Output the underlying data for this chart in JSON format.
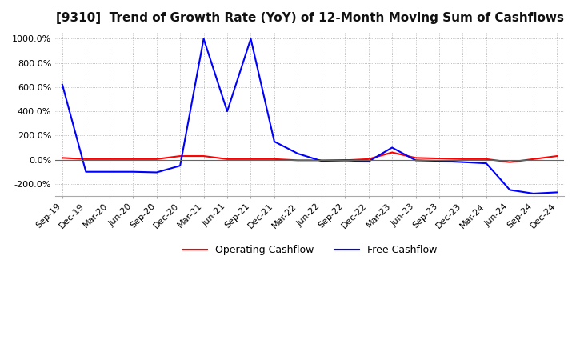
{
  "title": "[9310]  Trend of Growth Rate (YoY) of 12-Month Moving Sum of Cashflows",
  "ylim": [
    -300,
    1050
  ],
  "yticks": [
    -200,
    0,
    200,
    400,
    600,
    800,
    1000
  ],
  "ytick_labels": [
    "-200.0%",
    "0.0%",
    "200.0%",
    "400.0%",
    "600.0%",
    "800.0%",
    "1000.0%"
  ],
  "legend_entries": [
    "Operating Cashflow",
    "Free Cashflow"
  ],
  "background_color": "#ffffff",
  "grid_color": "#aaaaaa",
  "x_labels": [
    "Sep-19",
    "Dec-19",
    "Mar-20",
    "Jun-20",
    "Sep-20",
    "Dec-20",
    "Mar-21",
    "Jun-21",
    "Sep-21",
    "Dec-21",
    "Mar-22",
    "Jun-22",
    "Sep-22",
    "Dec-22",
    "Mar-23",
    "Jun-23",
    "Sep-23",
    "Dec-23",
    "Mar-24",
    "Jun-24",
    "Sep-24",
    "Dec-24"
  ],
  "operating_cashflow": [
    15,
    5,
    5,
    5,
    5,
    30,
    30,
    5,
    5,
    5,
    -5,
    -5,
    -5,
    5,
    60,
    15,
    10,
    5,
    5,
    -20,
    5,
    30
  ],
  "free_cashflow": [
    620,
    -100,
    -100,
    -100,
    -105,
    -50,
    1000,
    400,
    1000,
    150,
    50,
    -10,
    -5,
    -15,
    100,
    -5,
    -10,
    -20,
    -30,
    -250,
    -280,
    -270
  ]
}
